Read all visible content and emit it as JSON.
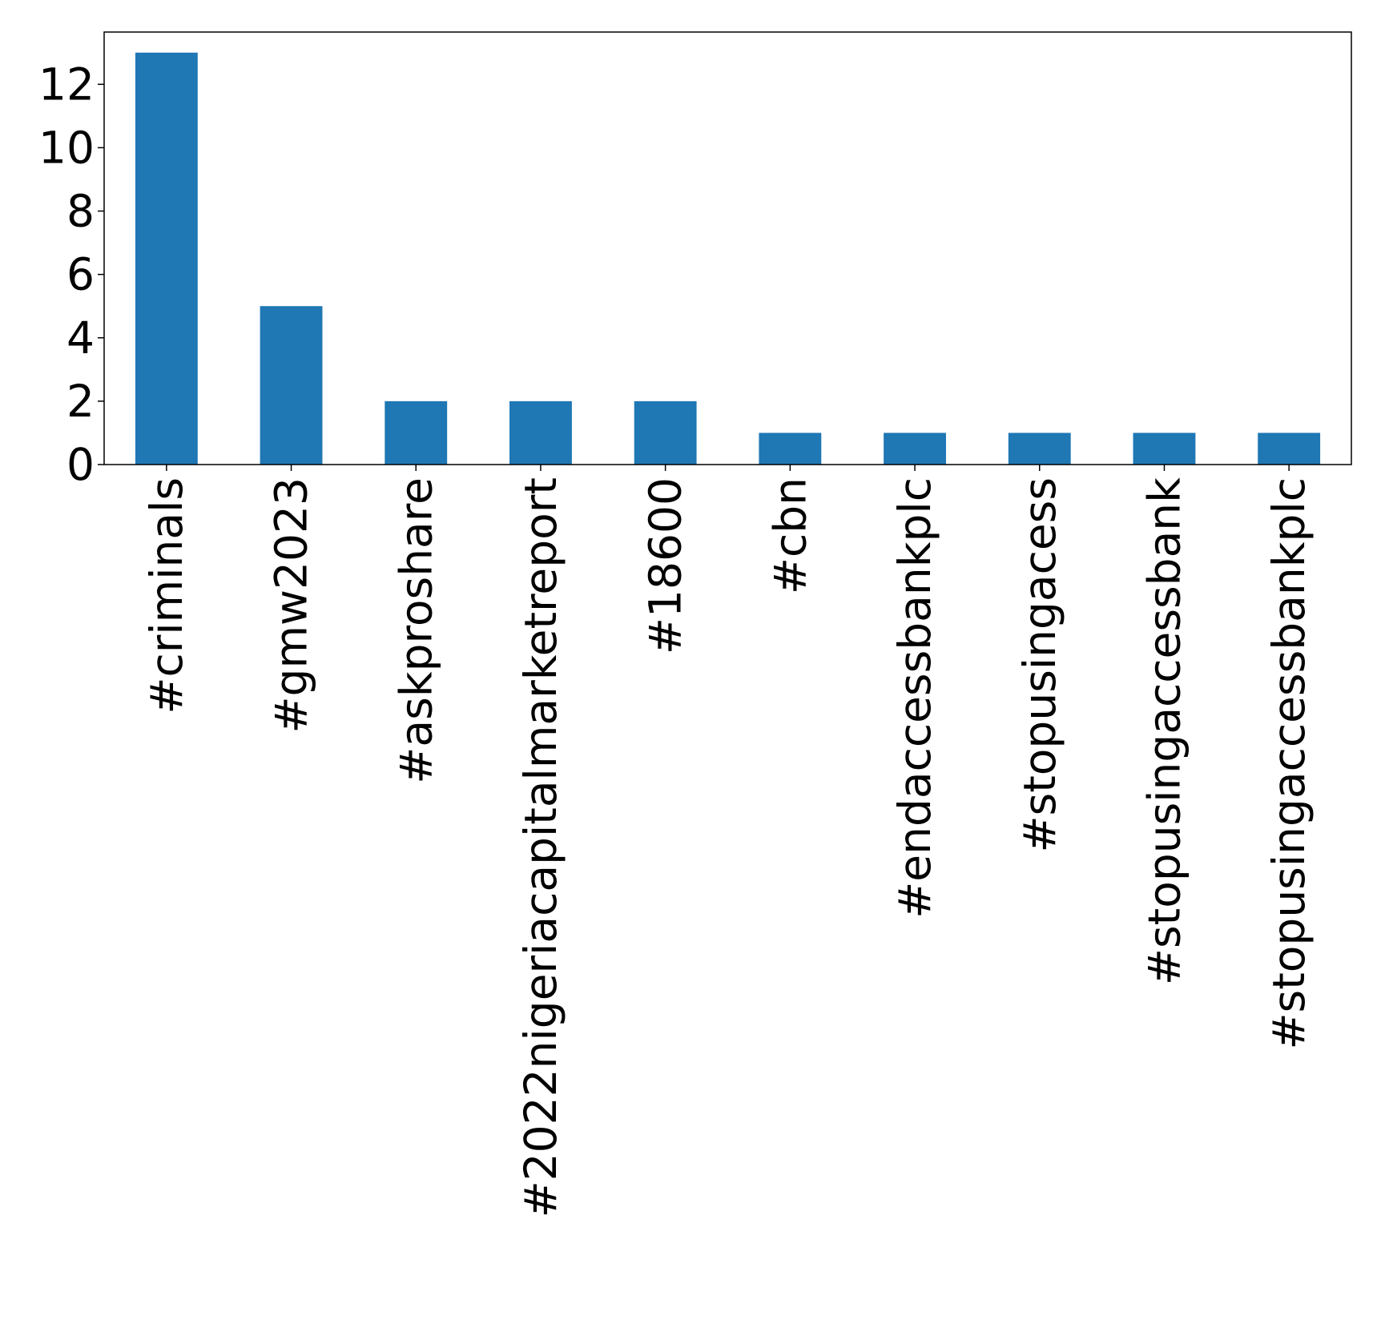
{
  "chart_data": {
    "type": "bar",
    "categories": [
      "#criminals",
      "#gmw2023",
      "#askproshare",
      "#2022nigeriacapitalmarketreport",
      "#18600",
      "#cbn",
      "#endaccessbankplc",
      "#stopusingacess",
      "#stopusingaccessbank",
      "#stopusingaccessbankplc"
    ],
    "values": [
      13,
      5,
      2,
      2,
      2,
      1,
      1,
      1,
      1,
      1
    ],
    "yticks": [
      "0",
      "2",
      "4",
      "6",
      "8",
      "10",
      "12"
    ],
    "ylim": [
      0,
      13.65
    ],
    "bar_color": "#1f77b4",
    "grid": false,
    "legend": false
  }
}
